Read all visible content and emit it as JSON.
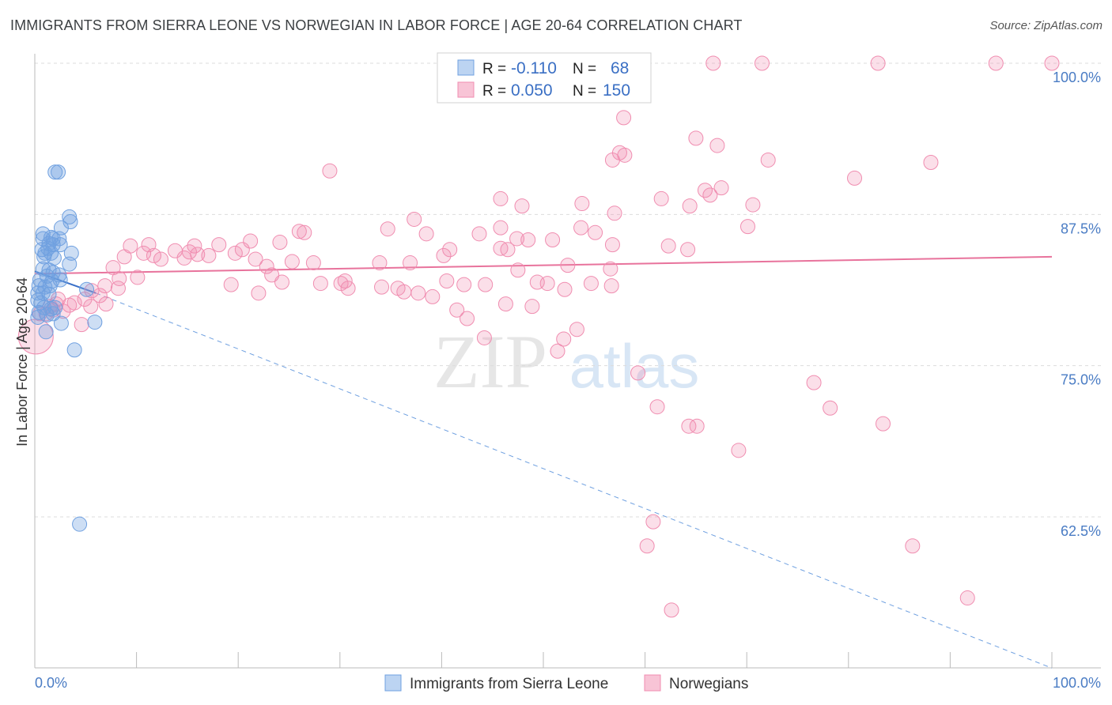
{
  "title": "IMMIGRANTS FROM SIERRA LEONE VS NORWEGIAN IN LABOR FORCE | AGE 20-64 CORRELATION CHART",
  "source": "Source: ZipAtlas.com",
  "watermark": {
    "zip": "ZIP",
    "atlas": "atlas"
  },
  "legend": {
    "rows": [
      {
        "r_label": "R = ",
        "r_value": "-0.110",
        "n_label": "N = ",
        "n_value": "68",
        "color": "#6fa0e0"
      },
      {
        "r_label": "R = ",
        "r_value": "0.050",
        "n_label": "N = ",
        "n_value": "150",
        "color": "#f08db0"
      }
    ]
  },
  "chart_data": {
    "type": "scatter",
    "ylabel": "In Labor Force | Age 20-64",
    "xlabel": "",
    "xlim": [
      0,
      100
    ],
    "ylim": [
      50,
      102.5
    ],
    "x_tick_labels": [
      {
        "value": 0,
        "label": "0.0%"
      },
      {
        "value": 100,
        "label": "100.0%"
      }
    ],
    "y_tick_labels": [
      {
        "value": 100,
        "label": "100.0%"
      },
      {
        "value": 87.5,
        "label": "87.5%"
      },
      {
        "value": 75,
        "label": "75.0%"
      },
      {
        "value": 62.5,
        "label": "62.5%"
      }
    ],
    "grid": true,
    "legend_position": "top-center",
    "series": [
      {
        "name": "Immigrants from Sierra Leone",
        "color": "#6fa0e0",
        "trend": {
          "solid": [
            [
              0,
              82.8
            ],
            [
              6,
              81.0
            ]
          ],
          "dashed": [
            [
              6,
              81.0
            ],
            [
              100,
              50.0
            ]
          ]
        },
        "points": [
          [
            2.0,
            91.0
          ],
          [
            2.3,
            91.0
          ],
          [
            3.4,
            87.3
          ],
          [
            3.5,
            86.9
          ],
          [
            2.6,
            86.4
          ],
          [
            0.8,
            85.9
          ],
          [
            0.8,
            85.5
          ],
          [
            1.6,
            85.6
          ],
          [
            1.8,
            85.5
          ],
          [
            2.4,
            85.5
          ],
          [
            1.4,
            85.1
          ],
          [
            1.8,
            85.0
          ],
          [
            2.5,
            85.0
          ],
          [
            0.7,
            84.6
          ],
          [
            1.3,
            84.7
          ],
          [
            1.0,
            84.3
          ],
          [
            1.6,
            84.3
          ],
          [
            3.6,
            84.3
          ],
          [
            0.9,
            84.0
          ],
          [
            1.9,
            83.9
          ],
          [
            3.4,
            83.4
          ],
          [
            0.8,
            83.0
          ],
          [
            1.4,
            82.9
          ],
          [
            1.8,
            82.7
          ],
          [
            1.2,
            82.4
          ],
          [
            2.4,
            82.5
          ],
          [
            0.5,
            82.1
          ],
          [
            1.7,
            82.0
          ],
          [
            2.5,
            82.1
          ],
          [
            0.4,
            81.6
          ],
          [
            1.0,
            81.5
          ],
          [
            1.5,
            81.6
          ],
          [
            5.1,
            81.3
          ],
          [
            0.3,
            81.0
          ],
          [
            0.8,
            81.0
          ],
          [
            1.4,
            80.9
          ],
          [
            0.3,
            80.4
          ],
          [
            0.6,
            80.2
          ],
          [
            0.9,
            79.8
          ],
          [
            1.6,
            79.7
          ],
          [
            2.0,
            79.8
          ],
          [
            0.4,
            79.4
          ],
          [
            1.2,
            79.2
          ],
          [
            1.8,
            79.3
          ],
          [
            0.3,
            79.0
          ],
          [
            5.9,
            78.6
          ],
          [
            2.6,
            78.5
          ],
          [
            1.1,
            77.8
          ],
          [
            3.9,
            76.3
          ],
          [
            4.4,
            61.9
          ]
        ]
      },
      {
        "name": "Norwegians",
        "color": "#f08db0",
        "trend": {
          "solid": [
            [
              0,
              82.6
            ],
            [
              100,
              84.0
            ]
          ]
        },
        "points": [
          [
            66.7,
            100.0
          ],
          [
            71.5,
            100.0
          ],
          [
            82.9,
            100.0
          ],
          [
            94.5,
            100.0
          ],
          [
            100.0,
            100.0
          ],
          [
            57.9,
            95.5
          ],
          [
            57.5,
            92.6
          ],
          [
            58.0,
            92.4
          ],
          [
            56.8,
            92.0
          ],
          [
            72.1,
            92.0
          ],
          [
            65.0,
            93.8
          ],
          [
            67.1,
            93.2
          ],
          [
            88.1,
            91.8
          ],
          [
            29.0,
            91.1
          ],
          [
            80.6,
            90.5
          ],
          [
            65.9,
            89.5
          ],
          [
            67.5,
            89.7
          ],
          [
            66.4,
            89.1
          ],
          [
            45.8,
            88.8
          ],
          [
            61.6,
            88.8
          ],
          [
            53.8,
            88.4
          ],
          [
            70.6,
            88.3
          ],
          [
            64.4,
            88.2
          ],
          [
            47.9,
            88.2
          ],
          [
            57.0,
            87.6
          ],
          [
            37.3,
            87.1
          ],
          [
            34.7,
            86.3
          ],
          [
            55.1,
            86.0
          ],
          [
            53.7,
            86.4
          ],
          [
            45.8,
            86.4
          ],
          [
            70.1,
            86.5
          ],
          [
            26.5,
            86.0
          ],
          [
            26.0,
            86.1
          ],
          [
            38.5,
            85.9
          ],
          [
            43.7,
            85.9
          ],
          [
            47.4,
            85.5
          ],
          [
            48.5,
            85.4
          ],
          [
            50.9,
            85.4
          ],
          [
            21.2,
            85.3
          ],
          [
            24.1,
            85.2
          ],
          [
            18.1,
            85.0
          ],
          [
            9.4,
            84.9
          ],
          [
            11.2,
            85.0
          ],
          [
            15.7,
            84.9
          ],
          [
            56.8,
            85.0
          ],
          [
            62.3,
            84.9
          ],
          [
            64.2,
            84.6
          ],
          [
            40.8,
            84.6
          ],
          [
            45.8,
            84.7
          ],
          [
            46.5,
            84.6
          ],
          [
            13.8,
            84.5
          ],
          [
            15.2,
            84.4
          ],
          [
            16.0,
            84.2
          ],
          [
            17.1,
            84.1
          ],
          [
            19.7,
            84.3
          ],
          [
            20.4,
            84.6
          ],
          [
            10.7,
            84.3
          ],
          [
            11.7,
            84.1
          ],
          [
            8.8,
            84.0
          ],
          [
            12.4,
            83.8
          ],
          [
            14.7,
            83.9
          ],
          [
            21.7,
            83.8
          ],
          [
            25.3,
            83.6
          ],
          [
            27.4,
            83.5
          ],
          [
            33.9,
            83.5
          ],
          [
            40.2,
            84.1
          ],
          [
            36.9,
            83.5
          ],
          [
            7.7,
            83.1
          ],
          [
            22.8,
            83.2
          ],
          [
            52.4,
            83.3
          ],
          [
            56.6,
            83.0
          ],
          [
            47.5,
            82.9
          ],
          [
            23.3,
            82.5
          ],
          [
            30.5,
            82.0
          ],
          [
            10.1,
            82.3
          ],
          [
            8.3,
            82.2
          ],
          [
            24.3,
            81.9
          ],
          [
            19.3,
            81.7
          ],
          [
            28.1,
            81.8
          ],
          [
            30.1,
            81.8
          ],
          [
            40.5,
            82.0
          ],
          [
            42.2,
            81.7
          ],
          [
            44.3,
            81.7
          ],
          [
            49.4,
            81.9
          ],
          [
            50.4,
            81.8
          ],
          [
            54.7,
            81.8
          ],
          [
            6.9,
            81.6
          ],
          [
            8.2,
            81.4
          ],
          [
            30.8,
            81.4
          ],
          [
            34.1,
            81.5
          ],
          [
            35.7,
            81.4
          ],
          [
            52.1,
            81.3
          ],
          [
            56.7,
            81.6
          ],
          [
            5.6,
            81.2
          ],
          [
            22.0,
            81.0
          ],
          [
            36.3,
            81.1
          ],
          [
            37.7,
            81.0
          ],
          [
            39.1,
            80.7
          ],
          [
            6.4,
            80.8
          ],
          [
            4.9,
            80.5
          ],
          [
            2.3,
            80.5
          ],
          [
            3.4,
            80.0
          ],
          [
            3.9,
            80.2
          ],
          [
            7.0,
            80.1
          ],
          [
            5.5,
            79.9
          ],
          [
            2.1,
            80.1
          ],
          [
            1.5,
            79.9
          ],
          [
            1.8,
            79.6
          ],
          [
            2.8,
            79.5
          ],
          [
            46.3,
            80.1
          ],
          [
            48.9,
            79.9
          ],
          [
            41.5,
            79.6
          ],
          [
            42.5,
            78.9
          ],
          [
            1.1,
            79.3
          ],
          [
            0.5,
            79.3
          ],
          [
            4.6,
            78.4
          ],
          [
            53.3,
            78.0
          ],
          [
            44.2,
            77.3
          ],
          [
            52.0,
            77.2
          ],
          [
            51.4,
            76.2
          ],
          [
            59.3,
            74.4
          ],
          [
            76.6,
            73.6
          ],
          [
            61.2,
            71.6
          ],
          [
            78.2,
            71.5
          ],
          [
            83.4,
            70.2
          ],
          [
            64.3,
            70.0
          ],
          [
            65.1,
            70.0
          ],
          [
            69.2,
            68.0
          ],
          [
            60.8,
            62.1
          ],
          [
            60.2,
            60.1
          ],
          [
            86.3,
            60.1
          ],
          [
            62.6,
            54.8
          ],
          [
            91.7,
            55.8
          ],
          [
            0.1,
            77.4
          ]
        ]
      }
    ],
    "bottom_legend": [
      "Immigrants from Sierra Leone",
      "Norwegians"
    ]
  }
}
